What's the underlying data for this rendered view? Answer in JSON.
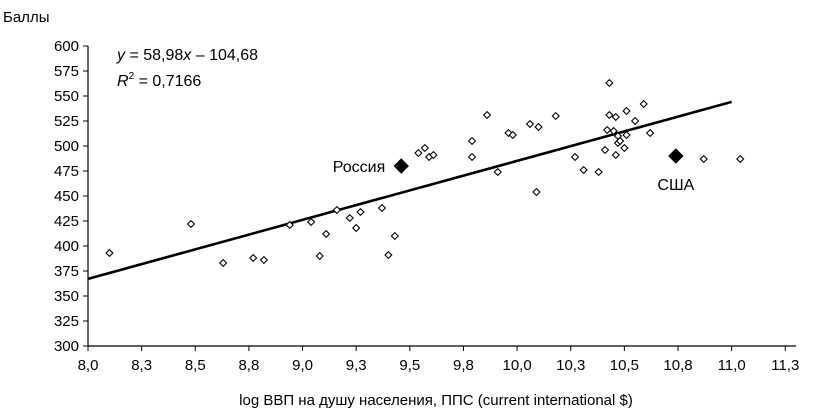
{
  "chart_data": {
    "type": "scatter",
    "title": "",
    "xlabel": "log ВВП на душу населения, ППС (current international $)",
    "ylabel": "Баллы",
    "xlim": [
      8.0,
      11.3
    ],
    "ylim": [
      300,
      600
    ],
    "x_ticks": [
      "8,0",
      "8,3",
      "8,5",
      "8,8",
      "9,0",
      "9,3",
      "9,5",
      "9,8",
      "10,0",
      "10,3",
      "10,5",
      "10,8",
      "11,0",
      "11,3"
    ],
    "x_tick_values": [
      8.0,
      8.25,
      8.5,
      8.75,
      9.0,
      9.25,
      9.5,
      9.75,
      10.0,
      10.25,
      10.5,
      10.75,
      11.0,
      11.25
    ],
    "y_ticks": [
      "300",
      "325",
      "350",
      "375",
      "400",
      "425",
      "450",
      "475",
      "500",
      "525",
      "550",
      "575",
      "600"
    ],
    "y_tick_values": [
      300,
      325,
      350,
      375,
      400,
      425,
      450,
      475,
      500,
      525,
      550,
      575,
      600
    ],
    "grid": false,
    "trendline": {
      "slope": 58.98,
      "intercept": -104.68,
      "r_squared": 0.7166,
      "equation_parts": [
        "y",
        " = 58,98",
        "x",
        " – 104,68"
      ],
      "r2_parts": [
        "R",
        "2",
        " = 0,7166"
      ]
    },
    "series": [
      {
        "marker": "hollow-diamond",
        "points": [
          [
            8.1,
            393
          ],
          [
            8.48,
            422
          ],
          [
            8.63,
            383
          ],
          [
            8.77,
            388
          ],
          [
            8.82,
            386
          ],
          [
            8.94,
            421
          ],
          [
            9.04,
            424
          ],
          [
            9.08,
            390
          ],
          [
            9.11,
            412
          ],
          [
            9.16,
            436
          ],
          [
            9.22,
            428
          ],
          [
            9.25,
            418
          ],
          [
            9.27,
            434
          ],
          [
            9.37,
            438
          ],
          [
            9.4,
            391
          ],
          [
            9.43,
            410
          ],
          [
            9.54,
            493
          ],
          [
            9.57,
            498
          ],
          [
            9.59,
            489
          ],
          [
            9.61,
            491
          ],
          [
            9.79,
            505
          ],
          [
            9.79,
            489
          ],
          [
            9.86,
            531
          ],
          [
            9.91,
            474
          ],
          [
            9.96,
            513
          ],
          [
            9.98,
            511
          ],
          [
            10.06,
            522
          ],
          [
            10.09,
            454
          ],
          [
            10.1,
            519
          ],
          [
            10.18,
            530
          ],
          [
            10.27,
            489
          ],
          [
            10.31,
            476
          ],
          [
            10.38,
            474
          ],
          [
            10.41,
            496
          ],
          [
            10.42,
            516
          ],
          [
            10.43,
            531
          ],
          [
            10.43,
            563
          ],
          [
            10.45,
            515
          ],
          [
            10.46,
            491
          ],
          [
            10.46,
            529
          ],
          [
            10.47,
            503
          ],
          [
            10.47,
            510
          ],
          [
            10.48,
            505
          ],
          [
            10.5,
            498
          ],
          [
            10.51,
            535
          ],
          [
            10.51,
            511
          ],
          [
            10.55,
            525
          ],
          [
            10.59,
            542
          ],
          [
            10.62,
            513
          ],
          [
            10.87,
            487
          ],
          [
            11.04,
            487
          ]
        ]
      },
      {
        "marker": "filled-diamond",
        "points": [
          [
            9.46,
            480
          ],
          [
            10.74,
            490
          ]
        ]
      }
    ],
    "annotations": [
      {
        "text": "Россия",
        "x": 9.46,
        "y": 480
      },
      {
        "text": "США",
        "x": 10.74,
        "y": 490
      }
    ]
  }
}
